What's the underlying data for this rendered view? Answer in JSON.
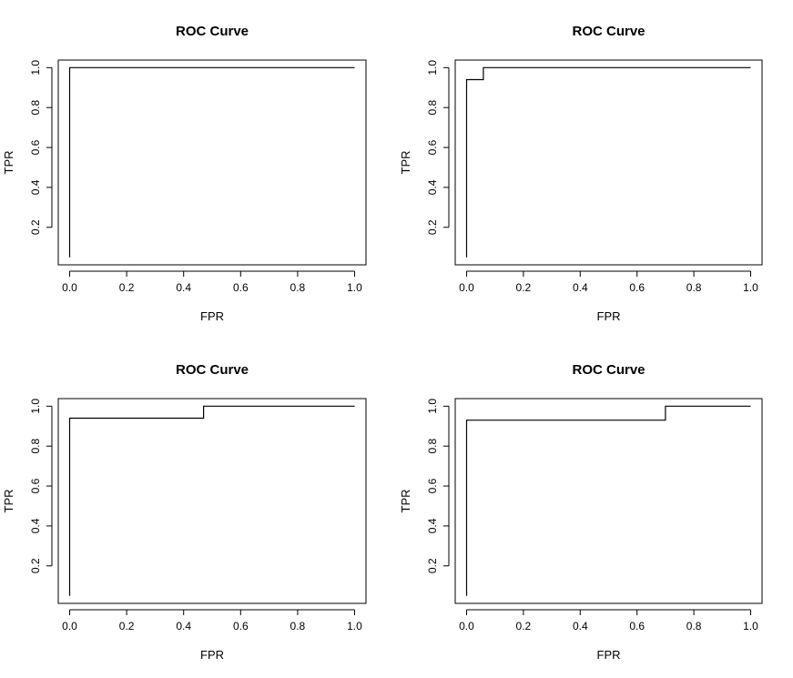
{
  "chart_data": [
    {
      "type": "line",
      "title": "ROC Curve",
      "xlabel": "FPR",
      "ylabel": "TPR",
      "xlim": [
        0.0,
        1.0
      ],
      "ylim": [
        0.05,
        1.0
      ],
      "xticks": [
        "0.0",
        "0.2",
        "0.4",
        "0.6",
        "0.8",
        "1.0"
      ],
      "yticks": [
        "0.2",
        "0.4",
        "0.6",
        "0.8",
        "1.0"
      ],
      "grid": false,
      "x": [
        0.0,
        0.0,
        1.0
      ],
      "y": [
        0.05,
        1.0,
        1.0
      ]
    },
    {
      "type": "line",
      "title": "ROC Curve",
      "xlabel": "FPR",
      "ylabel": "TPR",
      "xlim": [
        0.0,
        1.0
      ],
      "ylim": [
        0.05,
        1.0
      ],
      "xticks": [
        "0.0",
        "0.2",
        "0.4",
        "0.6",
        "0.8",
        "1.0"
      ],
      "yticks": [
        "0.2",
        "0.4",
        "0.6",
        "0.8",
        "1.0"
      ],
      "grid": false,
      "x": [
        0.0,
        0.0,
        0.059,
        0.059,
        1.0
      ],
      "y": [
        0.05,
        0.94,
        0.94,
        1.0,
        1.0
      ]
    },
    {
      "type": "line",
      "title": "ROC Curve",
      "xlabel": "FPR",
      "ylabel": "TPR",
      "xlim": [
        0.0,
        1.0
      ],
      "ylim": [
        0.05,
        1.0
      ],
      "xticks": [
        "0.0",
        "0.2",
        "0.4",
        "0.6",
        "0.8",
        "1.0"
      ],
      "yticks": [
        "0.2",
        "0.4",
        "0.6",
        "0.8",
        "1.0"
      ],
      "grid": false,
      "x": [
        0.0,
        0.0,
        0.47,
        0.47,
        1.0
      ],
      "y": [
        0.05,
        0.94,
        0.94,
        1.0,
        1.0
      ]
    },
    {
      "type": "line",
      "title": "ROC Curve",
      "xlabel": "FPR",
      "ylabel": "TPR",
      "xlim": [
        0.0,
        1.0
      ],
      "ylim": [
        0.05,
        1.0
      ],
      "xticks": [
        "0.0",
        "0.2",
        "0.4",
        "0.6",
        "0.8",
        "1.0"
      ],
      "yticks": [
        "0.2",
        "0.4",
        "0.6",
        "0.8",
        "1.0"
      ],
      "grid": false,
      "x": [
        0.0,
        0.0,
        0.7,
        0.7,
        1.0
      ],
      "y": [
        0.05,
        0.93,
        0.93,
        1.0,
        1.0
      ]
    }
  ]
}
